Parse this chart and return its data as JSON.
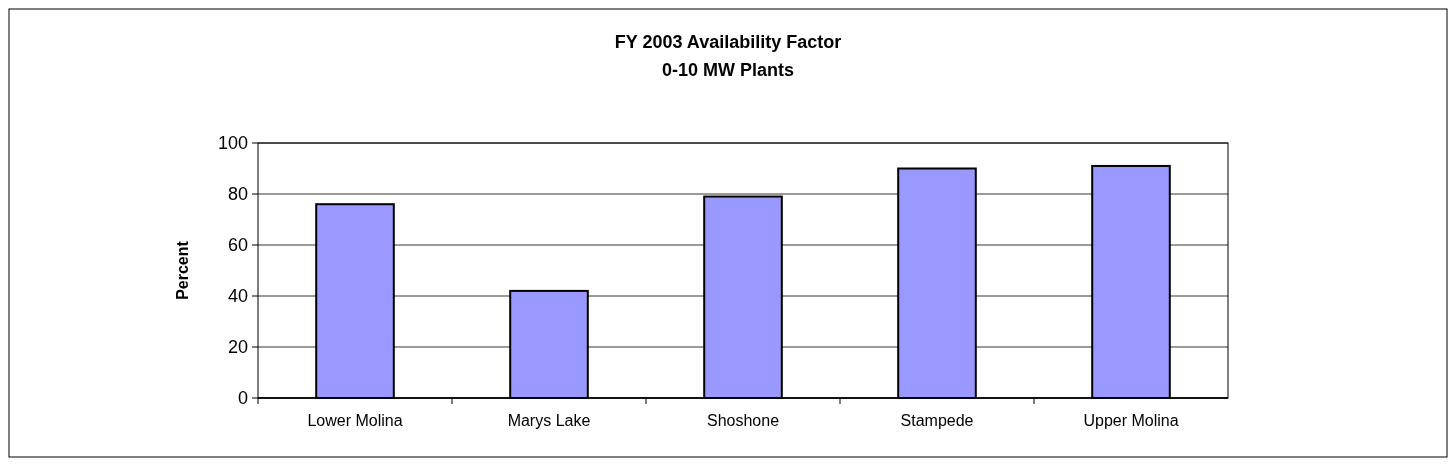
{
  "chart_data": {
    "type": "bar",
    "title": "FY 2003 Availability Factor",
    "subtitle": "0-10 MW Plants",
    "ylabel": "Percent",
    "categories": [
      "Lower Molina",
      "Marys Lake",
      "Shoshone",
      "Stampede",
      "Upper Molina"
    ],
    "values": [
      76,
      42,
      79,
      90,
      91
    ],
    "color": "#9999ff",
    "ylim": [
      0,
      100
    ],
    "yticks": [
      0,
      20,
      40,
      60,
      80,
      100
    ],
    "grid": "y"
  }
}
